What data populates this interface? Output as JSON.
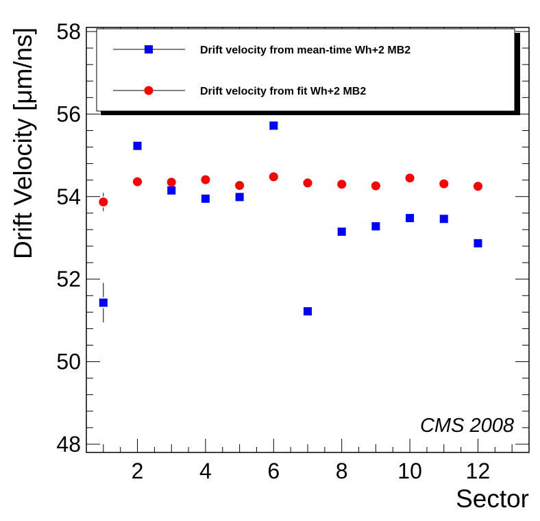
{
  "chart_data": {
    "type": "scatter",
    "title": "",
    "xlabel": "Sector",
    "ylabel": "Drift Velocity [μm/ns]",
    "xlim": [
      0.5,
      13.5
    ],
    "ylim": [
      47.8,
      58.1
    ],
    "x_ticks": [
      2,
      4,
      6,
      8,
      10,
      12
    ],
    "y_ticks": [
      48,
      50,
      52,
      54,
      56,
      58
    ],
    "annotation": "CMS 2008",
    "legend_position": "top",
    "series": [
      {
        "name": "Drift velocity from mean-time Wh+2 MB2",
        "marker": "square",
        "color": "#0000ff",
        "x": [
          1,
          2,
          3,
          4,
          5,
          6,
          7,
          8,
          9,
          10,
          11,
          12
        ],
        "y": [
          51.43,
          55.23,
          54.15,
          53.95,
          53.99,
          55.72,
          51.22,
          53.15,
          53.28,
          53.48,
          53.46,
          52.87
        ],
        "err": [
          0.48,
          0,
          0,
          0,
          0,
          0,
          0,
          0,
          0,
          0,
          0,
          0
        ]
      },
      {
        "name": "Drift velocity from fit Wh+2 MB2",
        "marker": "circle",
        "color": "#ff0000",
        "x": [
          1,
          2,
          3,
          4,
          5,
          6,
          7,
          8,
          9,
          10,
          11,
          12
        ],
        "y": [
          53.87,
          54.36,
          54.35,
          54.41,
          54.27,
          54.48,
          54.33,
          54.3,
          54.26,
          54.45,
          54.31,
          54.25
        ],
        "err": [
          0.22,
          0,
          0,
          0,
          0,
          0,
          0,
          0,
          0,
          0,
          0,
          0
        ]
      }
    ]
  }
}
